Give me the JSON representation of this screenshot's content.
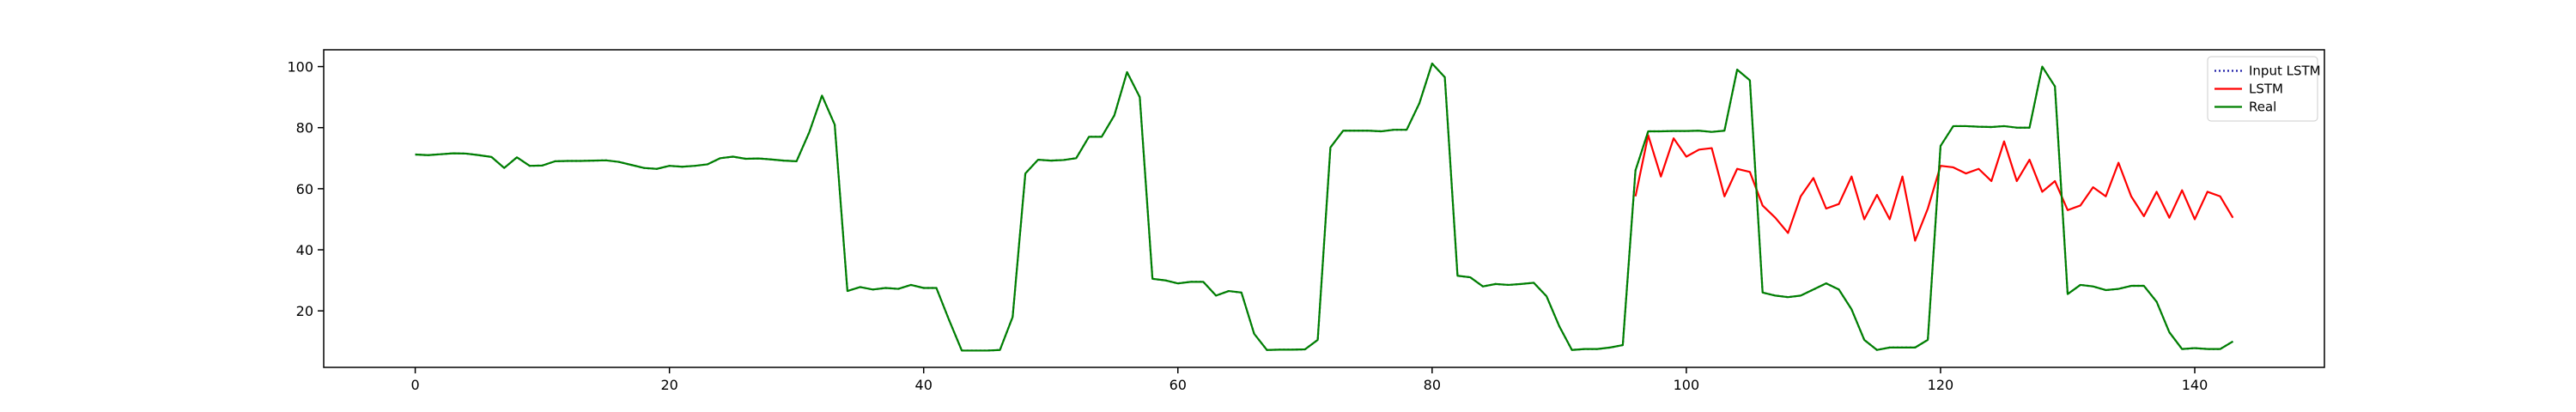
{
  "chart_data": {
    "type": "line",
    "title": "",
    "xlabel": "",
    "ylabel": "",
    "xlim": [
      -7.2,
      150.2
    ],
    "ylim": [
      1.5,
      105.5
    ],
    "xticks": [
      0,
      20,
      40,
      60,
      80,
      100,
      120,
      140
    ],
    "yticks": [
      20,
      40,
      60,
      80,
      100
    ],
    "grid": false,
    "legend_position": "top-right",
    "series": [
      {
        "name": "Input LSTM",
        "color": "#1f1fa8",
        "style": "dotted",
        "x_start": 0,
        "values": [
          71.2,
          71.0,
          71.3,
          71.6,
          71.5,
          71.0,
          70.4,
          66.8,
          70.3,
          67.5,
          67.6,
          69.0,
          69.1,
          69.1,
          69.2,
          69.3,
          68.8,
          67.8,
          66.8,
          66.5,
          67.5,
          67.2,
          67.5,
          68.0,
          70.0,
          70.5,
          69.8,
          69.9,
          69.6,
          69.2,
          69.0,
          78.5,
          90.5,
          81.0,
          26.5,
          27.8,
          27.0,
          27.5,
          27.2,
          28.5,
          27.5,
          27.5,
          17.0,
          7.0,
          7.0,
          7.0,
          7.2,
          18.0,
          65.0,
          69.5,
          69.2,
          69.4,
          70.0,
          77.0,
          77.0,
          84.0,
          98.2,
          90.0,
          30.5,
          30.0,
          29.0,
          29.5,
          29.5,
          25.0,
          26.5,
          26.0,
          12.5,
          7.2,
          7.3,
          7.3,
          7.4,
          10.5,
          73.5,
          79.0,
          79.0,
          79.0,
          78.8,
          79.3,
          79.3,
          88.0,
          101.0,
          96.5,
          31.5,
          31.0,
          28.0,
          28.8,
          28.5,
          28.8,
          29.2,
          24.8,
          15.0,
          7.2,
          7.5,
          7.5,
          8.0,
          8.8,
          66.0,
          78.8,
          78.8,
          78.9,
          78.9,
          79.0,
          78.6,
          79.0,
          99.0,
          95.5,
          26.0,
          25.0,
          24.5,
          25.0,
          27.0,
          29.0,
          27.0,
          20.5,
          10.5,
          7.2,
          8.0,
          8.0,
          8.0,
          10.5,
          74.0,
          80.5,
          80.5,
          80.3,
          80.2,
          80.5,
          80.0,
          80.0,
          100.0,
          93.5,
          25.5,
          28.5,
          28.0,
          26.8,
          27.2,
          28.2,
          28.2,
          23.0,
          13.0,
          7.5,
          7.8,
          7.5,
          7.5,
          10.0
        ]
      },
      {
        "name": "LSTM",
        "color": "#ff0000",
        "style": "solid",
        "x_start": 96,
        "values": [
          57.5,
          77.5,
          64.0,
          76.5,
          70.5,
          72.8,
          73.3,
          57.5,
          66.5,
          65.5,
          54.5,
          50.5,
          45.5,
          57.5,
          63.5,
          53.5,
          55.0,
          64.0,
          50.0,
          58.0,
          50.0,
          64.0,
          43.0,
          53.5,
          67.5,
          67.0,
          65.0,
          66.5,
          62.5,
          75.5,
          62.5,
          69.5,
          59.0,
          62.5,
          53.0,
          54.5,
          60.5,
          57.5,
          68.5,
          57.5,
          51.0,
          59.0,
          50.5,
          59.5,
          50.0,
          59.0,
          57.5,
          50.5
        ]
      },
      {
        "name": "Real",
        "color": "#008000",
        "style": "solid",
        "x_start": 0,
        "values": [
          71.2,
          71.0,
          71.3,
          71.6,
          71.5,
          71.0,
          70.4,
          66.8,
          70.3,
          67.5,
          67.6,
          69.0,
          69.1,
          69.1,
          69.2,
          69.3,
          68.8,
          67.8,
          66.8,
          66.5,
          67.5,
          67.2,
          67.5,
          68.0,
          70.0,
          70.5,
          69.8,
          69.9,
          69.6,
          69.2,
          69.0,
          78.5,
          90.5,
          81.0,
          26.5,
          27.8,
          27.0,
          27.5,
          27.2,
          28.5,
          27.5,
          27.5,
          17.0,
          7.0,
          7.0,
          7.0,
          7.2,
          18.0,
          65.0,
          69.5,
          69.2,
          69.4,
          70.0,
          77.0,
          77.0,
          84.0,
          98.2,
          90.0,
          30.5,
          30.0,
          29.0,
          29.5,
          29.5,
          25.0,
          26.5,
          26.0,
          12.5,
          7.2,
          7.3,
          7.3,
          7.4,
          10.5,
          73.5,
          79.0,
          79.0,
          79.0,
          78.8,
          79.3,
          79.3,
          88.0,
          101.0,
          96.5,
          31.5,
          31.0,
          28.0,
          28.8,
          28.5,
          28.8,
          29.2,
          24.8,
          15.0,
          7.2,
          7.5,
          7.5,
          8.0,
          8.8,
          66.0,
          78.8,
          78.8,
          78.9,
          78.9,
          79.0,
          78.6,
          79.0,
          99.0,
          95.5,
          26.0,
          25.0,
          24.5,
          25.0,
          27.0,
          29.0,
          27.0,
          20.5,
          10.5,
          7.2,
          8.0,
          8.0,
          8.0,
          10.5,
          74.0,
          80.5,
          80.5,
          80.3,
          80.2,
          80.5,
          80.0,
          80.0,
          100.0,
          93.5,
          25.5,
          28.5,
          28.0,
          26.8,
          27.2,
          28.2,
          28.2,
          23.0,
          13.0,
          7.5,
          7.8,
          7.5,
          7.5,
          10.0
        ]
      }
    ]
  }
}
